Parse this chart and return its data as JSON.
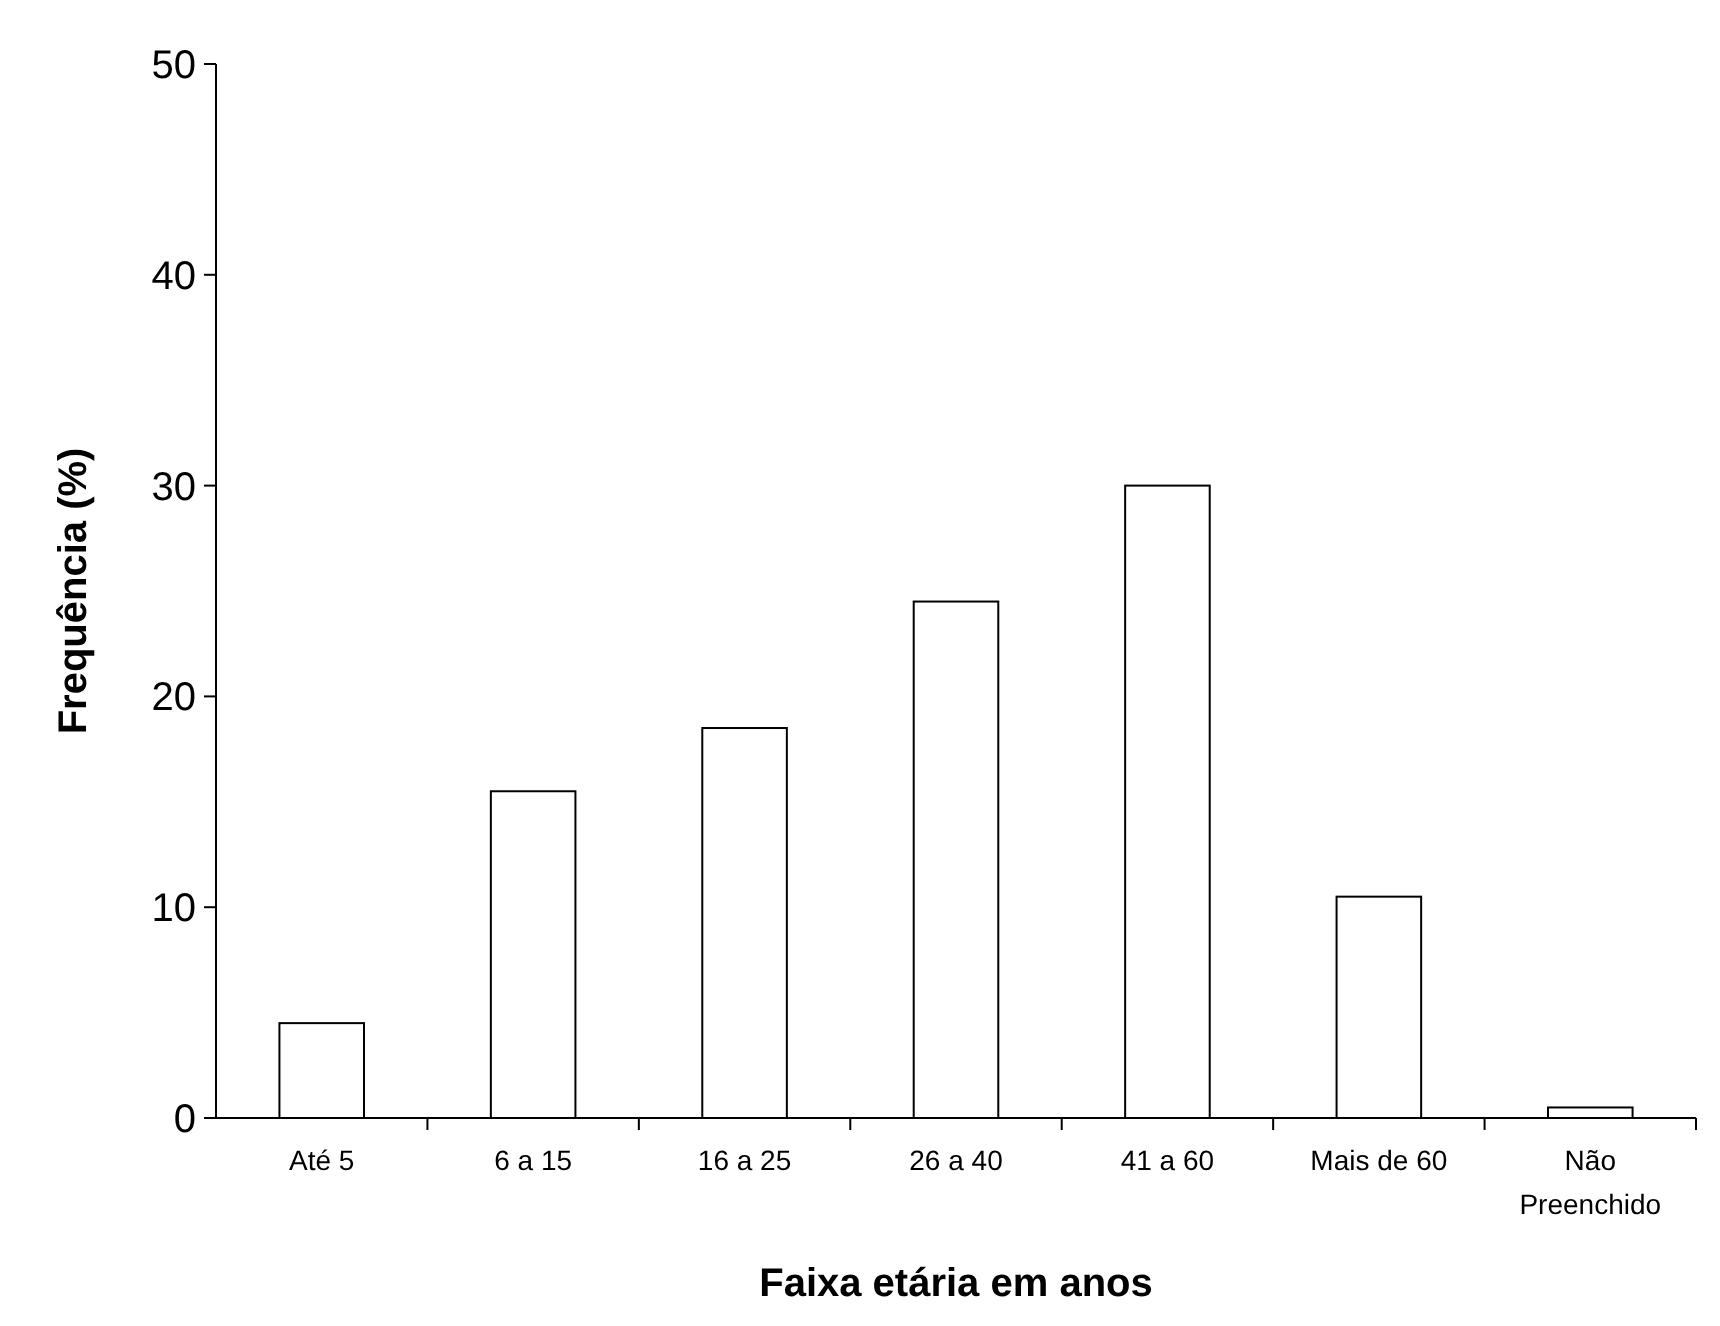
{
  "chart_data": {
    "type": "bar",
    "xlabel": "Faixa etária em anos",
    "ylabel": "Frequência (%)",
    "categories": [
      "Até 5",
      "6 a 15",
      "16 a 25",
      "26 a 40",
      "41 a 60",
      "Mais de 60",
      "Não Preenchido"
    ],
    "values": [
      4.5,
      15.5,
      18.5,
      24.5,
      30,
      10.5,
      0.5
    ],
    "color": "#ffffff",
    "ylim": [
      0,
      50
    ],
    "yticks": [
      0,
      10,
      20,
      30,
      40,
      50
    ],
    "grid": false
  }
}
